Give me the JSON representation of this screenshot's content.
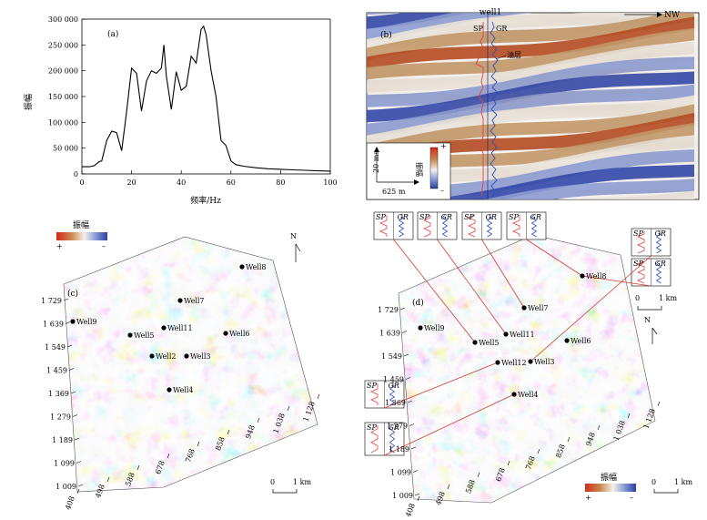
{
  "panel_a": {
    "label": "(a)",
    "ylabel": "振幅",
    "xlabel": "频率/Hz",
    "chart_data": {
      "type": "line",
      "title": "",
      "xlabel": "频率/Hz",
      "ylabel": "振幅",
      "xlim": [
        0,
        100
      ],
      "ylim": [
        0,
        300000
      ],
      "xticks": [
        "0",
        "20",
        "40",
        "60",
        "80",
        "100"
      ],
      "yticks": [
        "0",
        "50 000",
        "100 000",
        "150 000",
        "200 000",
        "250 000",
        "300 000"
      ],
      "x": [
        0,
        3,
        5,
        7,
        8,
        10,
        12,
        14,
        16,
        18,
        20,
        22,
        24,
        26,
        28,
        30,
        32,
        33,
        34,
        36,
        38,
        40,
        42,
        44,
        46,
        48,
        49,
        50,
        52,
        54,
        56,
        58,
        60,
        62,
        65,
        70,
        75,
        80,
        85,
        90,
        95,
        100
      ],
      "y": [
        14000,
        14000,
        16000,
        24000,
        25000,
        65000,
        83000,
        80000,
        45000,
        120000,
        205000,
        195000,
        122000,
        180000,
        200000,
        195000,
        205000,
        250000,
        190000,
        125000,
        198000,
        162000,
        170000,
        228000,
        215000,
        280000,
        286000,
        270000,
        200000,
        150000,
        65000,
        55000,
        25000,
        18000,
        15000,
        12000,
        10000,
        9000,
        8000,
        7000,
        6000,
        5500
      ]
    }
  },
  "panel_b": {
    "label": "(b)",
    "well_label": "well1",
    "direction_label": "NW",
    "sp_label": "SP",
    "gr_label": "GR",
    "layer_label": "油层",
    "scale_time": "20 ms",
    "scale_dist": "625 m",
    "amp_label": "振幅",
    "plus": "+",
    "minus": "–"
  },
  "panel_c": {
    "label": "(c)",
    "legend_title": "振幅",
    "plus": "+",
    "minus": "–",
    "north": "N",
    "scale_zero": "0",
    "scale_km": "1 km",
    "yticks": [
      "1 729",
      "1 639",
      "1 549",
      "1 459",
      "1 369",
      "1 279",
      "1 189",
      "1 099",
      "1 009"
    ],
    "xticks": [
      "408",
      "498",
      "588",
      "678",
      "768",
      "858",
      "948",
      "1 038",
      "1 128"
    ],
    "wells": [
      "Well8",
      "Well7",
      "Well9",
      "Well11",
      "Well5",
      "Well6",
      "Well2",
      "Well3",
      "Well4"
    ]
  },
  "panel_d": {
    "label": "(d)",
    "legend_title": "振幅",
    "plus": "+",
    "minus": "–",
    "north": "N",
    "scale_zero": "0",
    "scale_km": "1 km",
    "sp_label": "SP",
    "gr_label": "GR",
    "yticks": [
      "1 729",
      "1 639",
      "1 549",
      "1 459",
      "1 369",
      "1 279",
      "1 189",
      "1 099",
      "1 009"
    ],
    "xticks": [
      "408",
      "498",
      "588",
      "678",
      "768",
      "858",
      "948",
      "1 038",
      "1 128"
    ],
    "wells": [
      "Well8",
      "Well7",
      "Well9",
      "Well11",
      "Well5",
      "Well6",
      "Well12",
      "Well3",
      "Well4"
    ]
  }
}
